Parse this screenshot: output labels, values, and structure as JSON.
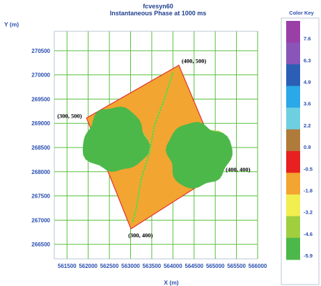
{
  "chart_data": {
    "type": "heatmap",
    "header": {
      "name": "fcvesyn60",
      "title": "Instantaneous Phase at 1000 ms"
    },
    "xlabel": "X (m)",
    "ylabel": "Y (m)",
    "xlim": [
      561200,
      566000
    ],
    "ylim": [
      266200,
      270900
    ],
    "xticks": [
      "561500",
      "562000",
      "562500",
      "563000",
      "563500",
      "564000",
      "564500",
      "565000",
      "565500",
      "566000"
    ],
    "yticks": [
      "270500",
      "270000",
      "269500",
      "269000",
      "268500",
      "268000",
      "267500",
      "267000",
      "266500"
    ],
    "grid": true,
    "survey_corners": [
      {
        "label": "(300, 500)",
        "x": 561960,
        "y": 269110
      },
      {
        "label": "(400, 500)",
        "x": 564140,
        "y": 270200
      },
      {
        "label": "(400, 400)",
        "x": 565180,
        "y": 268030
      },
      {
        "label": "(300, 400)",
        "x": 563010,
        "y": 266820
      }
    ],
    "color_key": {
      "title": "Color Key",
      "labels": [
        "7.6",
        "6.3",
        "4.9",
        "3.6",
        "2.2",
        "0.9",
        "-0.5",
        "-1.8",
        "-3.2",
        "-4.6",
        "-5.9"
      ],
      "colors": [
        "#9b3fa8",
        "#8a55b8",
        "#2b5fb5",
        "#2aa8e8",
        "#6ecfe0",
        "#b07a3a",
        "#e82020",
        "#f2a530",
        "#f2ee50",
        "#9fcf3f",
        "#4cb84a"
      ]
    },
    "features": [
      {
        "name": "left-anomaly",
        "center": [
          562650,
          268650
        ]
      },
      {
        "name": "right-anomaly",
        "center": [
          564600,
          268350
        ]
      },
      {
        "name": "channel",
        "path": [
          [
            564000,
            270050
          ],
          [
            563800,
            269500
          ],
          [
            563560,
            268950
          ],
          [
            563450,
            268400
          ],
          [
            563250,
            267850
          ],
          [
            563150,
            267300
          ],
          [
            563050,
            266950
          ]
        ]
      }
    ],
    "background_color": "#f2a530"
  }
}
